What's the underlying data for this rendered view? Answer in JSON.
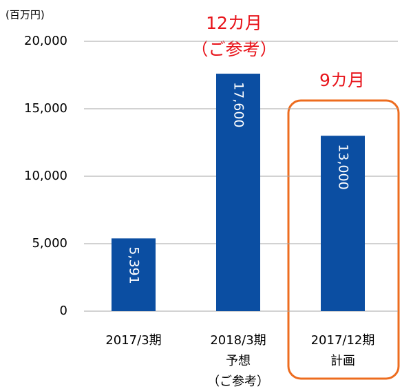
{
  "chart_data": {
    "type": "bar",
    "y_axis_label": "(百万円)",
    "categories": [
      [
        "2017/3期"
      ],
      [
        "2018/3期",
        "予想",
        "（ご参考）"
      ],
      [
        "2017/12期",
        "計画"
      ]
    ],
    "values": [
      5391,
      17600,
      13000
    ],
    "value_labels": [
      "5,391",
      "17,600",
      "13,000"
    ],
    "color": "#0b4ea2",
    "ylim": [
      0,
      20000
    ],
    "yticks": [
      0,
      {
        "value": 5000,
        "label": "5,000"
      },
      {
        "value": 10000,
        "label": "10,000"
      },
      {
        "value": 15000,
        "label": "15,000"
      },
      {
        "value": 20000,
        "label": "20,000"
      }
    ],
    "grid": true,
    "annotations": [
      "12カ月",
      "（ご参考）",
      "9カ月"
    ]
  }
}
